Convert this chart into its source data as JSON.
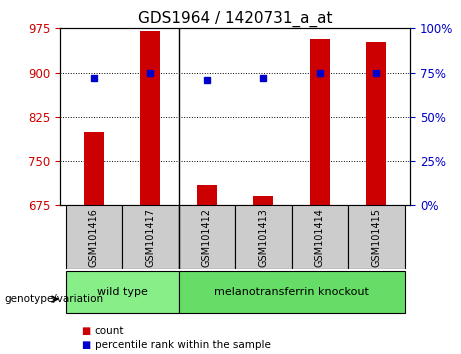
{
  "title": "GDS1964 / 1420731_a_at",
  "samples": [
    "GSM101416",
    "GSM101417",
    "GSM101412",
    "GSM101413",
    "GSM101414",
    "GSM101415"
  ],
  "bar_values": [
    800,
    970,
    710,
    690,
    957,
    952
  ],
  "percentile_values": [
    72,
    75,
    71,
    72,
    75,
    75
  ],
  "ylim_left": [
    675,
    975
  ],
  "ylim_right": [
    0,
    100
  ],
  "yticks_left": [
    675,
    750,
    825,
    900,
    975
  ],
  "yticks_right": [
    0,
    25,
    50,
    75,
    100
  ],
  "bar_color": "#cc0000",
  "point_color": "#0000cc",
  "grid_color": "#000000",
  "groups": [
    {
      "label": "wild type",
      "indices": [
        0,
        1
      ],
      "color": "#88ee88"
    },
    {
      "label": "melanotransferrin knockout",
      "indices": [
        2,
        3,
        4,
        5
      ],
      "color": "#66dd66"
    }
  ],
  "group_label": "genotype/variation",
  "legend_bar_label": "count",
  "legend_point_label": "percentile rank within the sample",
  "sample_box_color": "#cccccc",
  "bar_width": 0.35,
  "title_fontsize": 11,
  "tick_fontsize": 8.5,
  "sample_fontsize": 7,
  "group_fontsize": 8
}
